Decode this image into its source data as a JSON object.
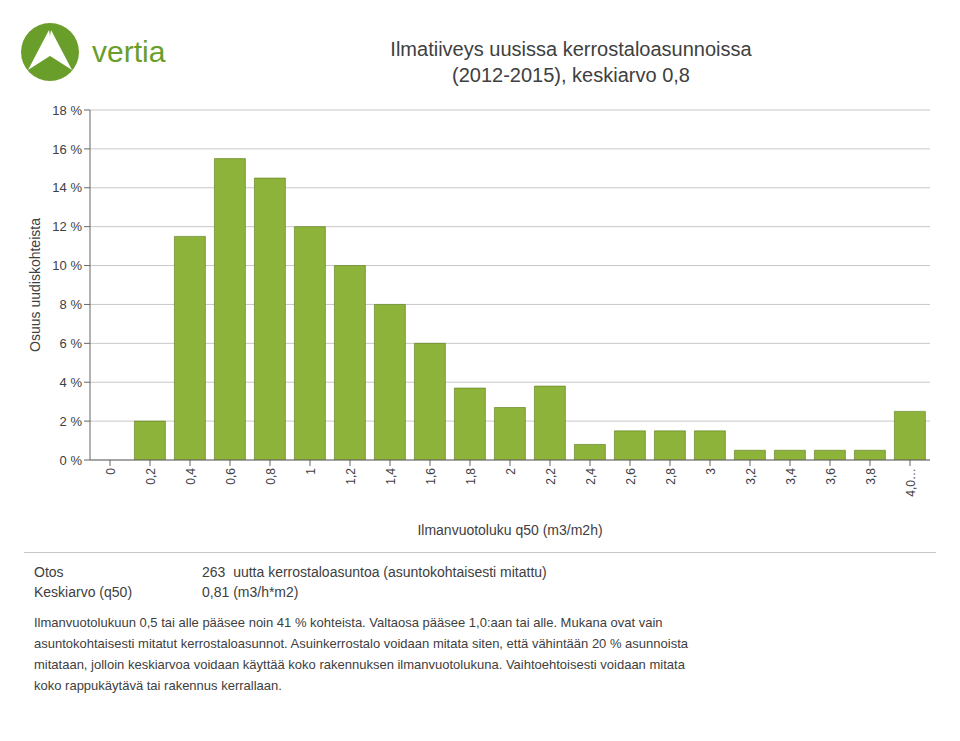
{
  "chart_data": {
    "type": "bar",
    "title": "Ilmatiiveys uusissa kerrostaloasunnoissa",
    "subtitle": "(2012-2015), keskiarvo 0,8",
    "xlabel": "Ilmanvuotoluku q50 (m3/m2h)",
    "ylabel": "Osuus uudiskohteista",
    "categories": [
      "0",
      "0,2",
      "0,4",
      "0,6",
      "0,8",
      "1",
      "1,2",
      "1,4",
      "1,6",
      "1,8",
      "2",
      "2,2",
      "2,4",
      "2,6",
      "2,8",
      "3",
      "3,2",
      "3,4",
      "3,6",
      "3,8",
      "4,0…"
    ],
    "values": [
      0.0,
      2.0,
      11.5,
      15.5,
      14.5,
      12.0,
      10.0,
      8.0,
      6.0,
      3.7,
      2.7,
      3.8,
      0.8,
      1.5,
      1.5,
      1.5,
      0.5,
      0.5,
      0.5,
      0.5,
      2.5
    ],
    "color": "#8db33a",
    "ylim": [
      0,
      18
    ],
    "yticks": [
      {
        "value": 0,
        "label": "0 %"
      },
      {
        "value": 2,
        "label": "2 %"
      },
      {
        "value": 4,
        "label": "4 %"
      },
      {
        "value": 6,
        "label": "6 %"
      },
      {
        "value": 8,
        "label": "8 %"
      },
      {
        "value": 10,
        "label": "10 %"
      },
      {
        "value": 12,
        "label": "12 %"
      },
      {
        "value": 14,
        "label": "14 %"
      },
      {
        "value": 16,
        "label": "16 %"
      },
      {
        "value": 18,
        "label": "18 %"
      }
    ],
    "grid": true,
    "annotations": [
      "vertia",
      "Otos",
      "263  uutta kerrostaloasuntoa (asuntokohtaisesti mitattu)",
      "Keskiarvo (q50)",
      "0,81 (m3/h*m2)",
      "Ilmanvuotolukuun 0,5 tai alle pääsee noin 41 % kohteista. Valtaosa pääsee 1,0:aan tai alle. Mukana ovat vain\nasuntokohtaisesti mitatut kerrostaloasunnot. Asuinkerrostalo voidaan mitata siten, että vähintään 20 % asunnoista\nmitataan, jolloin keskiarvoa voidaan käyttää koko rakennuksen ilmanvuotolukuna. Vaihtoehtoisesti voidaan mitata\nkoko rappukäytävä tai rakennus kerrallaan."
    ]
  }
}
